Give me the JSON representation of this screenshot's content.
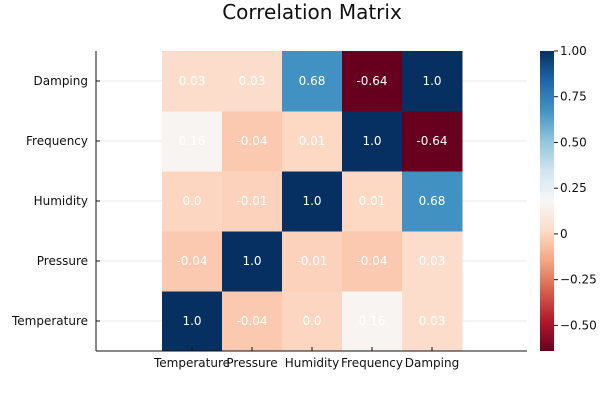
{
  "chart_data": {
    "type": "heatmap",
    "title": "Correlation Matrix",
    "xlabel": "",
    "ylabel": "",
    "x_categories": [
      "Temperature",
      "Pressure",
      "Humidity",
      "Frequency",
      "Damping"
    ],
    "y_categories": [
      "Temperature",
      "Pressure",
      "Humidity",
      "Frequency",
      "Damping"
    ],
    "values": [
      [
        1.0,
        -0.04,
        0.0,
        0.16,
        0.03
      ],
      [
        -0.04,
        1.0,
        -0.01,
        -0.04,
        0.03
      ],
      [
        0.0,
        -0.01,
        1.0,
        0.01,
        0.68
      ],
      [
        0.16,
        -0.04,
        0.01,
        1.0,
        -0.64
      ],
      [
        0.03,
        0.03,
        0.68,
        -0.64,
        1.0
      ]
    ],
    "cell_labels": [
      [
        "1.0",
        "-0.04",
        "0.0",
        "0.16",
        "0.03"
      ],
      [
        "-0.04",
        "1.0",
        "-0.01",
        "-0.04",
        "0.03"
      ],
      [
        "0.0",
        "-0.01",
        "1.0",
        "0.01",
        "0.68"
      ],
      [
        "0.16",
        "-0.04",
        "0.01",
        "1.0",
        "-0.64"
      ],
      [
        "0.03",
        "0.03",
        "0.68",
        "-0.64",
        "1.0"
      ]
    ],
    "colormap": "RdBu",
    "clim": [
      -0.64,
      1.0
    ],
    "colorbar_ticks": [
      {
        "value": 1.0,
        "label": "1.00"
      },
      {
        "value": 0.75,
        "label": "0.75"
      },
      {
        "value": 0.5,
        "label": "0.50"
      },
      {
        "value": 0.25,
        "label": "0.25"
      },
      {
        "value": 0.0,
        "label": "0"
      },
      {
        "value": -0.25,
        "label": "−0.25"
      },
      {
        "value": -0.5,
        "label": "−0.50"
      }
    ],
    "grid": true,
    "colors": {
      "text": "#111111",
      "cell_text": "#ffffff",
      "grid": "#ebebeb",
      "axis": "#111111"
    }
  }
}
